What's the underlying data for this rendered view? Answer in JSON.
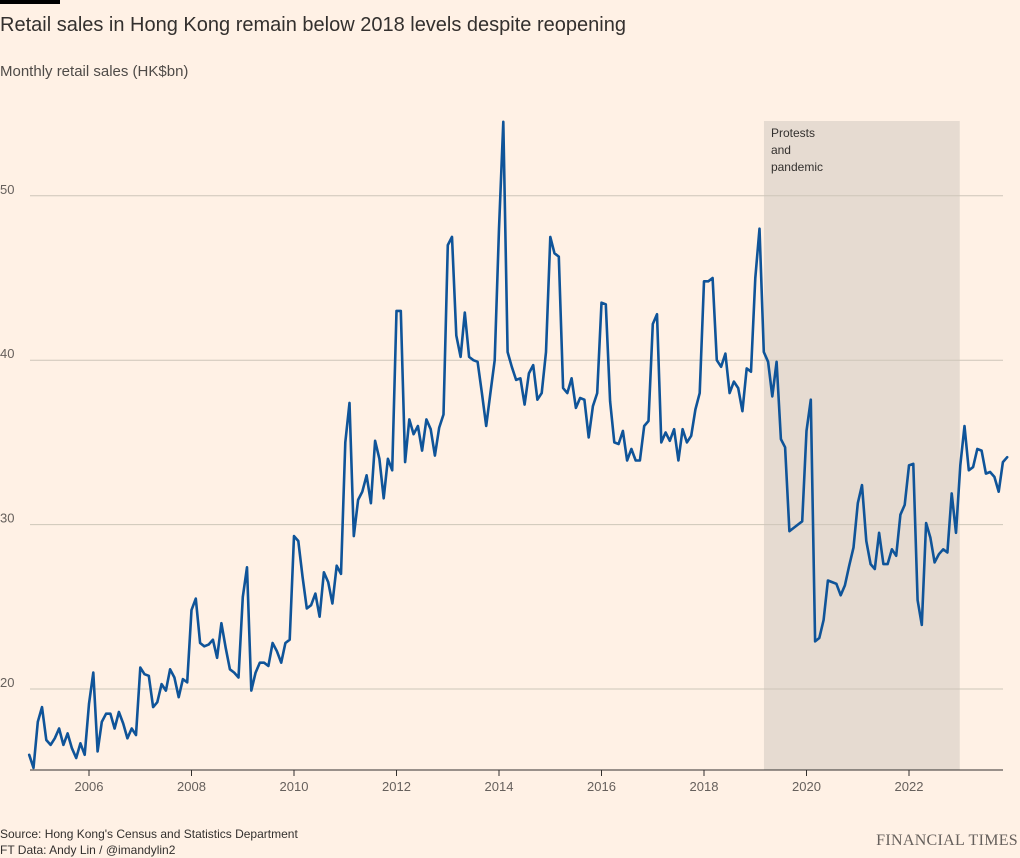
{
  "chart_data": {
    "type": "line",
    "title": "Retail sales in Hong Kong remain below 2018 levels despite reopening",
    "subtitle": "Monthly retail sales (HK$bn)",
    "ylim": [
      15,
      55
    ],
    "yticks": [
      20,
      30,
      40,
      50
    ],
    "xlim": [
      2004.833,
      2024.0
    ],
    "xticks": [
      2006,
      2008,
      2010,
      2012,
      2014,
      2016,
      2018,
      2020,
      2022
    ],
    "grid": "horizontal",
    "line_color": "#0f5499",
    "annotation": {
      "label_lines": [
        "Protests",
        "and",
        "pandemic"
      ],
      "x_start": 2019.17,
      "x_end": 2022.99
    },
    "series": [
      {
        "points": [
          [
            2004.833,
            16.0
          ],
          [
            2004.917,
            15.2
          ],
          [
            2005.0,
            18.0
          ],
          [
            2005.083,
            18.9
          ],
          [
            2005.167,
            16.9
          ],
          [
            2005.25,
            16.6
          ],
          [
            2005.333,
            17.0
          ],
          [
            2005.417,
            17.6
          ],
          [
            2005.5,
            16.6
          ],
          [
            2005.583,
            17.3
          ],
          [
            2005.667,
            16.4
          ],
          [
            2005.75,
            15.8
          ],
          [
            2005.833,
            16.7
          ],
          [
            2005.917,
            16.0
          ],
          [
            2006.0,
            19.1
          ],
          [
            2006.083,
            21.0
          ],
          [
            2006.167,
            16.2
          ],
          [
            2006.25,
            18.0
          ],
          [
            2006.333,
            18.5
          ],
          [
            2006.417,
            18.5
          ],
          [
            2006.5,
            17.6
          ],
          [
            2006.583,
            18.6
          ],
          [
            2006.667,
            17.9
          ],
          [
            2006.75,
            17.0
          ],
          [
            2006.833,
            17.6
          ],
          [
            2006.917,
            17.2
          ],
          [
            2007.0,
            21.3
          ],
          [
            2007.083,
            20.9
          ],
          [
            2007.167,
            20.8
          ],
          [
            2007.25,
            18.9
          ],
          [
            2007.333,
            19.2
          ],
          [
            2007.417,
            20.3
          ],
          [
            2007.5,
            19.9
          ],
          [
            2007.583,
            21.2
          ],
          [
            2007.667,
            20.7
          ],
          [
            2007.75,
            19.5
          ],
          [
            2007.833,
            20.6
          ],
          [
            2007.917,
            20.4
          ],
          [
            2008.0,
            24.8
          ],
          [
            2008.083,
            25.5
          ],
          [
            2008.167,
            22.8
          ],
          [
            2008.25,
            22.6
          ],
          [
            2008.333,
            22.7
          ],
          [
            2008.417,
            23.0
          ],
          [
            2008.5,
            21.9
          ],
          [
            2008.583,
            24.0
          ],
          [
            2008.667,
            22.5
          ],
          [
            2008.75,
            21.2
          ],
          [
            2008.833,
            21.0
          ],
          [
            2008.917,
            20.7
          ],
          [
            2009.0,
            25.6
          ],
          [
            2009.083,
            27.4
          ],
          [
            2009.167,
            19.9
          ],
          [
            2009.25,
            21.0
          ],
          [
            2009.333,
            21.6
          ],
          [
            2009.417,
            21.6
          ],
          [
            2009.5,
            21.4
          ],
          [
            2009.583,
            22.8
          ],
          [
            2009.667,
            22.3
          ],
          [
            2009.75,
            21.6
          ],
          [
            2009.833,
            22.8
          ],
          [
            2009.917,
            23.0
          ],
          [
            2010.0,
            29.3
          ],
          [
            2010.083,
            29.0
          ],
          [
            2010.167,
            26.8
          ],
          [
            2010.25,
            24.9
          ],
          [
            2010.333,
            25.1
          ],
          [
            2010.417,
            25.8
          ],
          [
            2010.5,
            24.4
          ],
          [
            2010.583,
            27.1
          ],
          [
            2010.667,
            26.5
          ],
          [
            2010.75,
            25.2
          ],
          [
            2010.833,
            27.5
          ],
          [
            2010.917,
            27.0
          ],
          [
            2011.0,
            35.0
          ],
          [
            2011.083,
            37.4
          ],
          [
            2011.167,
            29.3
          ],
          [
            2011.25,
            31.5
          ],
          [
            2011.333,
            32.0
          ],
          [
            2011.417,
            33.0
          ],
          [
            2011.5,
            31.3
          ],
          [
            2011.583,
            35.1
          ],
          [
            2011.667,
            34.0
          ],
          [
            2011.75,
            31.6
          ],
          [
            2011.833,
            34.0
          ],
          [
            2011.917,
            33.3
          ],
          [
            2012.0,
            43.0
          ],
          [
            2012.083,
            43.0
          ],
          [
            2012.167,
            33.8
          ],
          [
            2012.25,
            36.4
          ],
          [
            2012.333,
            35.5
          ],
          [
            2012.417,
            36.0
          ],
          [
            2012.5,
            34.5
          ],
          [
            2012.583,
            36.4
          ],
          [
            2012.667,
            35.8
          ],
          [
            2012.75,
            34.2
          ],
          [
            2012.833,
            35.9
          ],
          [
            2012.917,
            36.7
          ],
          [
            2013.0,
            47.0
          ],
          [
            2013.083,
            47.5
          ],
          [
            2013.167,
            41.5
          ],
          [
            2013.25,
            40.2
          ],
          [
            2013.333,
            42.9
          ],
          [
            2013.417,
            40.2
          ],
          [
            2013.5,
            40.0
          ],
          [
            2013.583,
            39.9
          ],
          [
            2013.667,
            38.0
          ],
          [
            2013.75,
            36.0
          ],
          [
            2013.833,
            38.0
          ],
          [
            2013.917,
            40.0
          ],
          [
            2014.0,
            48.0
          ],
          [
            2014.083,
            54.5
          ],
          [
            2014.167,
            40.5
          ],
          [
            2014.25,
            39.6
          ],
          [
            2014.333,
            38.8
          ],
          [
            2014.417,
            38.9
          ],
          [
            2014.5,
            37.3
          ],
          [
            2014.583,
            39.2
          ],
          [
            2014.667,
            39.7
          ],
          [
            2014.75,
            37.6
          ],
          [
            2014.833,
            38.0
          ],
          [
            2014.917,
            40.5
          ],
          [
            2015.0,
            47.5
          ],
          [
            2015.083,
            46.5
          ],
          [
            2015.167,
            46.3
          ],
          [
            2015.25,
            38.3
          ],
          [
            2015.333,
            38.0
          ],
          [
            2015.417,
            38.9
          ],
          [
            2015.5,
            37.1
          ],
          [
            2015.583,
            37.7
          ],
          [
            2015.667,
            37.6
          ],
          [
            2015.75,
            35.3
          ],
          [
            2015.833,
            37.2
          ],
          [
            2015.917,
            38.0
          ],
          [
            2016.0,
            43.5
          ],
          [
            2016.083,
            43.4
          ],
          [
            2016.167,
            37.5
          ],
          [
            2016.25,
            35.0
          ],
          [
            2016.333,
            34.9
          ],
          [
            2016.417,
            35.7
          ],
          [
            2016.5,
            33.9
          ],
          [
            2016.583,
            34.6
          ],
          [
            2016.667,
            33.9
          ],
          [
            2016.75,
            33.9
          ],
          [
            2016.833,
            36.0
          ],
          [
            2016.917,
            36.3
          ],
          [
            2017.0,
            42.2
          ],
          [
            2017.083,
            42.8
          ],
          [
            2017.167,
            35.0
          ],
          [
            2017.25,
            35.6
          ],
          [
            2017.333,
            35.1
          ],
          [
            2017.417,
            35.8
          ],
          [
            2017.5,
            33.9
          ],
          [
            2017.583,
            35.8
          ],
          [
            2017.667,
            35.0
          ],
          [
            2017.75,
            35.4
          ],
          [
            2017.833,
            37.0
          ],
          [
            2017.917,
            38.0
          ],
          [
            2018.0,
            44.8
          ],
          [
            2018.083,
            44.8
          ],
          [
            2018.167,
            45.0
          ],
          [
            2018.25,
            40.0
          ],
          [
            2018.333,
            39.6
          ],
          [
            2018.417,
            40.4
          ],
          [
            2018.5,
            38.0
          ],
          [
            2018.583,
            38.7
          ],
          [
            2018.667,
            38.3
          ],
          [
            2018.75,
            36.9
          ],
          [
            2018.833,
            39.5
          ],
          [
            2018.917,
            39.3
          ],
          [
            2019.0,
            45.0
          ],
          [
            2019.083,
            48.0
          ],
          [
            2019.167,
            40.5
          ],
          [
            2019.25,
            39.9
          ],
          [
            2019.333,
            37.8
          ],
          [
            2019.417,
            39.9
          ],
          [
            2019.5,
            35.2
          ],
          [
            2019.583,
            34.7
          ],
          [
            2019.667,
            29.6
          ],
          [
            2019.75,
            29.8
          ],
          [
            2019.833,
            30.0
          ],
          [
            2019.917,
            30.2
          ],
          [
            2020.0,
            35.7
          ],
          [
            2020.083,
            37.6
          ],
          [
            2020.167,
            22.9
          ],
          [
            2020.25,
            23.1
          ],
          [
            2020.333,
            24.2
          ],
          [
            2020.417,
            26.6
          ],
          [
            2020.5,
            26.5
          ],
          [
            2020.583,
            26.4
          ],
          [
            2020.667,
            25.7
          ],
          [
            2020.75,
            26.3
          ],
          [
            2020.833,
            27.5
          ],
          [
            2020.917,
            28.6
          ],
          [
            2021.0,
            31.3
          ],
          [
            2021.083,
            32.4
          ],
          [
            2021.167,
            29.0
          ],
          [
            2021.25,
            27.6
          ],
          [
            2021.333,
            27.3
          ],
          [
            2021.417,
            29.5
          ],
          [
            2021.5,
            27.6
          ],
          [
            2021.583,
            27.6
          ],
          [
            2021.667,
            28.5
          ],
          [
            2021.75,
            28.1
          ],
          [
            2021.833,
            30.6
          ],
          [
            2021.917,
            31.2
          ],
          [
            2022.0,
            33.6
          ],
          [
            2022.083,
            33.7
          ],
          [
            2022.167,
            25.4
          ],
          [
            2022.25,
            23.9
          ],
          [
            2022.333,
            30.1
          ],
          [
            2022.417,
            29.2
          ],
          [
            2022.5,
            27.7
          ],
          [
            2022.583,
            28.2
          ],
          [
            2022.667,
            28.5
          ],
          [
            2022.75,
            28.3
          ],
          [
            2022.833,
            31.9
          ],
          [
            2022.917,
            29.5
          ],
          [
            2023.0,
            33.6
          ],
          [
            2023.083,
            36.0
          ],
          [
            2023.167,
            33.3
          ],
          [
            2023.25,
            33.5
          ],
          [
            2023.333,
            34.6
          ],
          [
            2023.417,
            34.5
          ],
          [
            2023.5,
            33.1
          ],
          [
            2023.583,
            33.2
          ],
          [
            2023.667,
            32.9
          ],
          [
            2023.75,
            32.0
          ],
          [
            2023.833,
            33.8
          ],
          [
            2023.917,
            34.1
          ]
        ]
      }
    ]
  },
  "footer": {
    "source": "Source: Hong Kong's Census and Statistics Department",
    "credit": "FT Data: Andy Lin / @imandylin2",
    "brand": "FINANCIAL TIMES"
  }
}
